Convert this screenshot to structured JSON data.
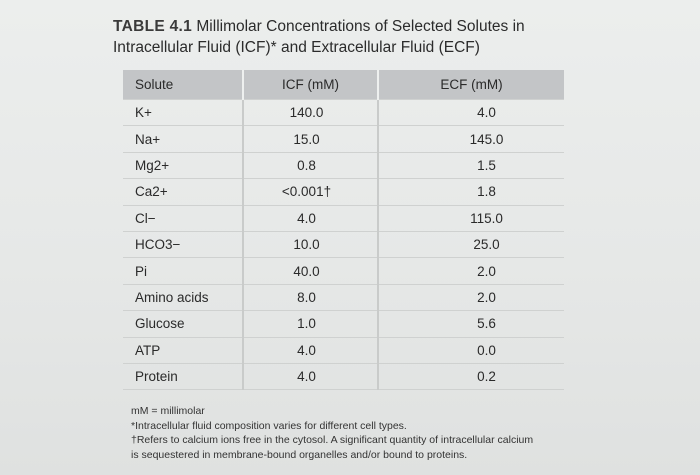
{
  "title": {
    "number": "TABLE 4.1",
    "line1": "Millimolar Concentrations of Selected Solutes in",
    "line2": "Intracellular Fluid (ICF)* and Extracellular Fluid (ECF)"
  },
  "table": {
    "headers": [
      "Solute",
      "ICF (mM)",
      "ECF (mM)"
    ],
    "rows": [
      {
        "solute": "K+",
        "icf": "140.0",
        "ecf": "4.0"
      },
      {
        "solute": "Na+",
        "icf": "15.0",
        "ecf": "145.0"
      },
      {
        "solute": "Mg2+",
        "icf": "0.8",
        "ecf": "1.5"
      },
      {
        "solute": "Ca2+",
        "icf": "<0.001†",
        "ecf": "1.8"
      },
      {
        "solute": "Cl−",
        "icf": "4.0",
        "ecf": "115.0"
      },
      {
        "solute": "HCO3−",
        "icf": "10.0",
        "ecf": "25.0"
      },
      {
        "solute": "Pi",
        "icf": "40.0",
        "ecf": "2.0"
      },
      {
        "solute": "Amino acids",
        "icf": "8.0",
        "ecf": "2.0"
      },
      {
        "solute": "Glucose",
        "icf": "1.0",
        "ecf": "5.6"
      },
      {
        "solute": "ATP",
        "icf": "4.0",
        "ecf": "0.0"
      },
      {
        "solute": "Protein",
        "icf": "4.0",
        "ecf": "0.2"
      }
    ]
  },
  "notes": {
    "mm": "mM = millimolar",
    "star": "*Intracellular fluid composition varies for different cell types.",
    "dagger1": "†Refers to calcium ions free in the cytosol. A significant quantity of intracellular calcium",
    "dagger2": "is sequestered in membrane-bound organelles and/or bound to proteins."
  }
}
